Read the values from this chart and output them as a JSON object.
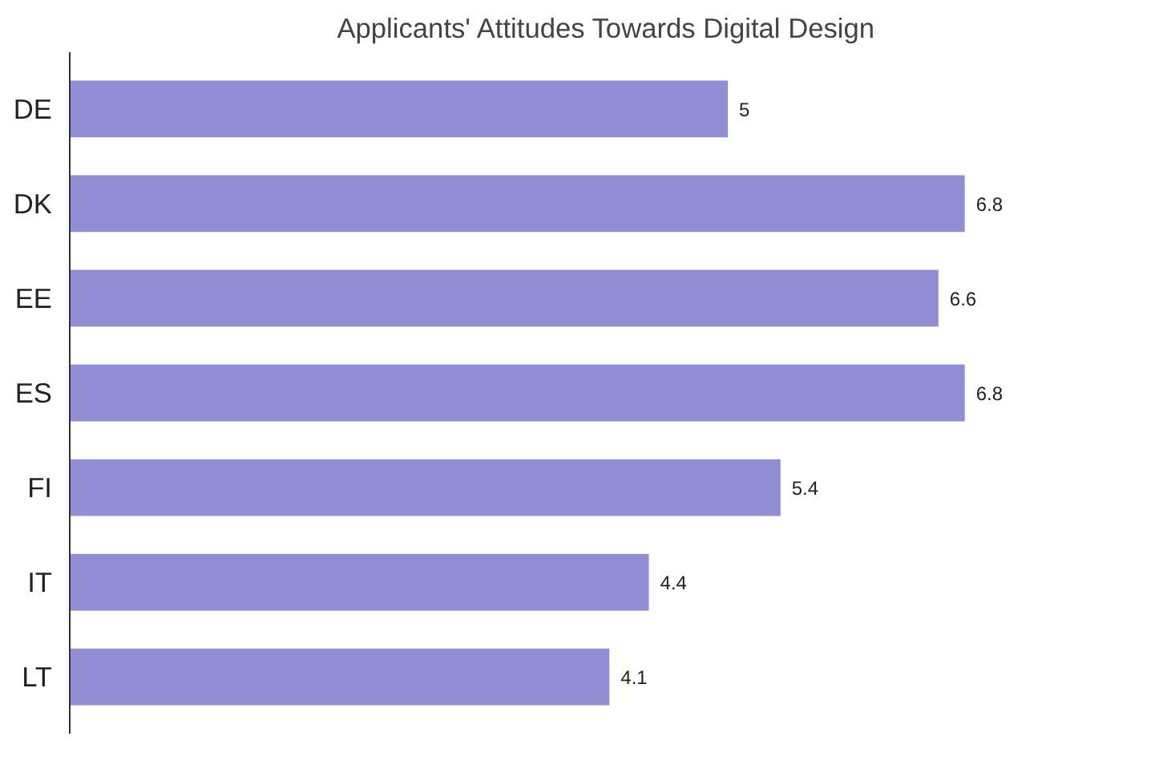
{
  "chart_data": {
    "type": "bar",
    "orientation": "horizontal",
    "title": "Applicants' Attitudes Towards Digital Design",
    "categories": [
      "DE",
      "DK",
      "EE",
      "ES",
      "FI",
      "IT",
      "LT"
    ],
    "values": [
      5,
      6.8,
      6.6,
      6.8,
      5.4,
      4.4,
      4.1
    ],
    "color": "#928ed4",
    "data_labels": true,
    "tick_labels": "y"
  }
}
